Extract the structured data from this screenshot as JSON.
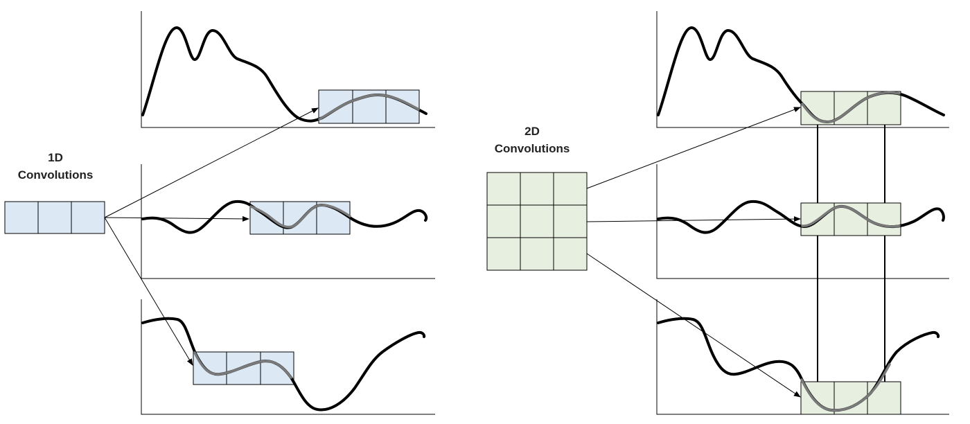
{
  "labels": {
    "conv1d_line1": "1D",
    "conv1d_line2": "Convolutions",
    "conv2d_line1": "2D",
    "conv2d_line2": "Convolutions"
  },
  "colors": {
    "kernel_1d_fill": "#dce8f4",
    "kernel_2d_fill": "#e7efe0",
    "signal": "#000000",
    "signal_inside_window": "#7a7a7a"
  },
  "kernels": {
    "kernel_1d": {
      "rows": 1,
      "cols": 3
    },
    "kernel_2d": {
      "rows": 3,
      "cols": 3
    }
  }
}
